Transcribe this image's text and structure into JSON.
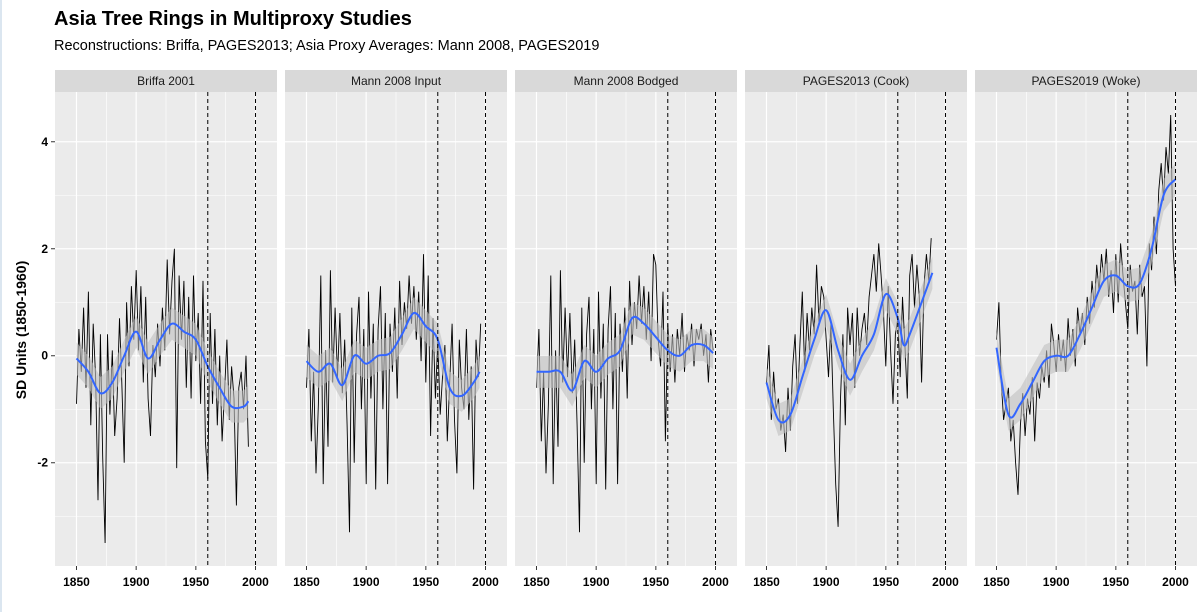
{
  "chart_data": {
    "type": "line",
    "title": "Asia Tree Rings in Multiproxy Studies",
    "subtitle": "Reconstructions: Briffa, PAGES2013; Asia Proxy Averages: Mann 2008, PAGES2019",
    "xlabel": "",
    "ylabel": "SD Units (1850-1960)",
    "xlim": [
      1832,
      2018
    ],
    "ylim": [
      -3.93,
      4.93
    ],
    "x_ticks": [
      1850,
      1900,
      1950,
      2000
    ],
    "x_tick_labels": [
      "1850",
      "1900",
      "1950",
      "2000"
    ],
    "y_ticks": [
      -2,
      0,
      2,
      4
    ],
    "y_tick_labels": [
      "-2",
      "0",
      "2",
      "4"
    ],
    "reference_lines_x": [
      1960,
      2000
    ],
    "grid": true,
    "colors": {
      "raw": "#000000",
      "smooth": "#3366ff",
      "ribbon": "#bfbfbf",
      "panel_bg": "#ebebeb",
      "strip_bg": "#d9d9d9"
    },
    "smooth_se_halfwidth": 0.3,
    "panels": [
      {
        "label": "Briffa 2001",
        "raw_start": 1850,
        "raw_step": 2,
        "raw": [
          -0.9,
          0.5,
          -0.3,
          0.9,
          -0.6,
          1.2,
          -1.3,
          0.6,
          -0.4,
          -2.7,
          0.4,
          -1.9,
          -3.5,
          0.4,
          -1.1,
          0.1,
          -1.5,
          -0.8,
          0.7,
          -0.5,
          -2.0,
          1.0,
          -0.2,
          1.3,
          0.3,
          1.6,
          0.1,
          1.3,
          -0.5,
          1.1,
          -0.8,
          -1.5,
          0.2,
          -0.4,
          0.6,
          -0.2,
          0.9,
          0.1,
          1.8,
          0.4,
          1.4,
          2.0,
          -2.1,
          1.5,
          0.3,
          1.4,
          -0.6,
          1.1,
          -0.8,
          1.5,
          -0.1,
          0.8,
          -0.9,
          1.4,
          -1.6,
          -2.3,
          0.8,
          -0.9,
          0.5,
          -1.3,
          0.0,
          -1.6,
          -0.7,
          0.3,
          -1.2,
          -0.2,
          -0.8,
          -2.8,
          -0.6,
          -0.3,
          -1.0,
          0.0,
          -1.7
        ],
        "smooth_x": [
          1850,
          1860,
          1870,
          1880,
          1890,
          1900,
          1910,
          1920,
          1930,
          1940,
          1950,
          1960,
          1970,
          1980,
          1990,
          1994
        ],
        "smooth_y": [
          -0.05,
          -0.3,
          -0.7,
          -0.5,
          0.0,
          0.45,
          -0.05,
          0.3,
          0.6,
          0.45,
          0.3,
          -0.2,
          -0.6,
          -0.95,
          -0.95,
          -0.85
        ]
      },
      {
        "label": "Mann 2008 Input",
        "raw_start": 1850,
        "raw_step": 2,
        "raw": [
          -0.6,
          0.5,
          -1.6,
          -0.3,
          -2.2,
          -0.9,
          1.5,
          -2.4,
          0.1,
          -1.7,
          1.6,
          -0.5,
          0.9,
          -0.4,
          0.8,
          -0.7,
          0.3,
          -1.3,
          -3.3,
          0.9,
          -2.0,
          0.4,
          1.1,
          -1.0,
          0.5,
          -2.4,
          1.2,
          -0.8,
          0.6,
          -2.5,
          0.5,
          1.3,
          -1.0,
          0.8,
          -2.4,
          0.6,
          -0.3,
          0.9,
          -0.8,
          1.4,
          0.2,
          1.0,
          0.5,
          1.5,
          0.6,
          1.3,
          0.3,
          1.2,
          -0.1,
          1.9,
          -0.5,
          1.5,
          -1.5,
          0.7,
          -0.8,
          0.3,
          -1.1,
          -0.4,
          0.2,
          -1.6,
          -0.5,
          0.6,
          -1.2,
          -2.2,
          0.3,
          -0.6,
          -1.0,
          0.5,
          -1.2,
          -0.2,
          -2.5,
          0.3,
          -0.4,
          0.6
        ],
        "smooth_x": [
          1850,
          1860,
          1870,
          1880,
          1890,
          1900,
          1910,
          1920,
          1930,
          1940,
          1950,
          1960,
          1970,
          1980,
          1990,
          1995
        ],
        "smooth_y": [
          -0.1,
          -0.3,
          -0.15,
          -0.55,
          0.0,
          -0.15,
          0.0,
          0.05,
          0.4,
          0.8,
          0.55,
          0.3,
          -0.6,
          -0.75,
          -0.5,
          -0.3
        ]
      },
      {
        "label": "Mann 2008 Bodged",
        "raw_start": 1850,
        "raw_step": 2,
        "raw": [
          -0.6,
          0.5,
          -1.6,
          -0.3,
          -2.2,
          -0.9,
          1.5,
          -2.4,
          0.1,
          -1.7,
          1.6,
          -0.5,
          0.9,
          -0.4,
          0.8,
          -0.7,
          0.3,
          -1.3,
          -3.3,
          0.9,
          -2.0,
          0.4,
          1.1,
          -1.0,
          0.5,
          -2.4,
          1.2,
          -0.8,
          0.6,
          -2.5,
          0.5,
          1.3,
          -1.0,
          0.8,
          -2.4,
          0.6,
          -0.3,
          0.9,
          -0.8,
          1.4,
          0.2,
          1.0,
          0.5,
          1.5,
          0.6,
          1.3,
          0.3,
          1.2,
          -0.1,
          1.9,
          1.7,
          0.3,
          -0.2,
          1.2,
          -1.6,
          0.6,
          -0.3,
          0.4,
          -0.5,
          0.5,
          0.0,
          0.8,
          -0.3,
          0.4,
          0.1,
          0.6,
          -0.2,
          0.5,
          0.3,
          0.6,
          0.0,
          0.4,
          -0.5,
          0.5,
          0.1
        ],
        "smooth_x": [
          1850,
          1860,
          1870,
          1880,
          1890,
          1900,
          1910,
          1920,
          1930,
          1940,
          1950,
          1960,
          1970,
          1980,
          1990,
          1998
        ],
        "smooth_y": [
          -0.3,
          -0.3,
          -0.3,
          -0.65,
          -0.1,
          -0.3,
          -0.05,
          0.1,
          0.7,
          0.6,
          0.35,
          0.1,
          0.0,
          0.2,
          0.2,
          0.05
        ]
      },
      {
        "label": "PAGES2013 (Cook)",
        "raw_start": 1850,
        "raw_step": 2,
        "raw": [
          -0.5,
          0.2,
          -1.2,
          -0.3,
          -1.0,
          -0.8,
          -1.4,
          -1.1,
          -1.8,
          -0.6,
          -1.4,
          -0.2,
          0.4,
          -0.9,
          0.2,
          1.2,
          -0.3,
          0.8,
          0.1,
          0.9,
          0.4,
          1.7,
          0.6,
          1.3,
          1.1,
          0.3,
          -0.4,
          0.6,
          -1.0,
          -2.4,
          -3.2,
          -0.8,
          0.4,
          -1.3,
          0.9,
          0.2,
          0.8,
          -0.6,
          0.9,
          0.0,
          0.5,
          0.8,
          0.2,
          1.1,
          1.5,
          1.9,
          1.2,
          2.1,
          1.5,
          0.8,
          -0.2,
          1.3,
          0.1,
          -0.9,
          0.4,
          0.7,
          -0.4,
          1.1,
          0.2,
          -0.8,
          1.5,
          1.9,
          0.9,
          1.7,
          1.1,
          -0.5,
          1.3,
          1.9,
          1.4,
          2.2
        ],
        "smooth_x": [
          1850,
          1860,
          1870,
          1880,
          1890,
          1900,
          1910,
          1920,
          1930,
          1940,
          1950,
          1960,
          1965,
          1970,
          1980,
          1989
        ],
        "smooth_y": [
          -0.5,
          -1.2,
          -1.1,
          -0.4,
          0.3,
          0.85,
          0.1,
          -0.45,
          0.0,
          0.4,
          1.15,
          0.7,
          0.2,
          0.4,
          1.0,
          1.55
        ]
      },
      {
        "label": "PAGES2019 (Woke)",
        "raw_start": 1850,
        "raw_step": 2,
        "raw": [
          0.3,
          1.0,
          -0.5,
          -1.2,
          -0.9,
          -0.6,
          -1.6,
          -1.2,
          -2.0,
          -2.6,
          -1.3,
          -0.7,
          -1.5,
          -0.8,
          -1.1,
          -0.4,
          -1.6,
          -0.5,
          -0.8,
          -0.2,
          -0.5,
          0.1,
          -0.6,
          0.6,
          0.2,
          -0.3,
          0.4,
          -0.1,
          0.3,
          -0.3,
          0.7,
          0.0,
          0.5,
          -0.2,
          0.9,
          0.4,
          0.8,
          0.2,
          1.1,
          0.6,
          1.4,
          0.9,
          1.7,
          1.2,
          1.9,
          1.4,
          2.0,
          1.1,
          1.6,
          0.8,
          1.9,
          1.0,
          2.1,
          1.5,
          1.0,
          0.5,
          1.7,
          1.2,
          1.4,
          0.4,
          1.7,
          1.1,
          1.3,
          -0.2,
          2.1,
          1.6,
          2.6,
          1.9,
          3.1,
          3.6,
          2.9,
          3.9,
          3.4,
          4.5,
          2.0,
          1.3
        ],
        "smooth_x": [
          1850,
          1860,
          1870,
          1880,
          1890,
          1900,
          1910,
          1920,
          1930,
          1940,
          1950,
          1960,
          1970,
          1980,
          1990,
          2000
        ],
        "smooth_y": [
          0.15,
          -1.1,
          -0.9,
          -0.5,
          -0.1,
          0.0,
          0.0,
          0.4,
          0.9,
          1.4,
          1.5,
          1.3,
          1.35,
          2.0,
          3.0,
          3.3
        ]
      }
    ]
  }
}
